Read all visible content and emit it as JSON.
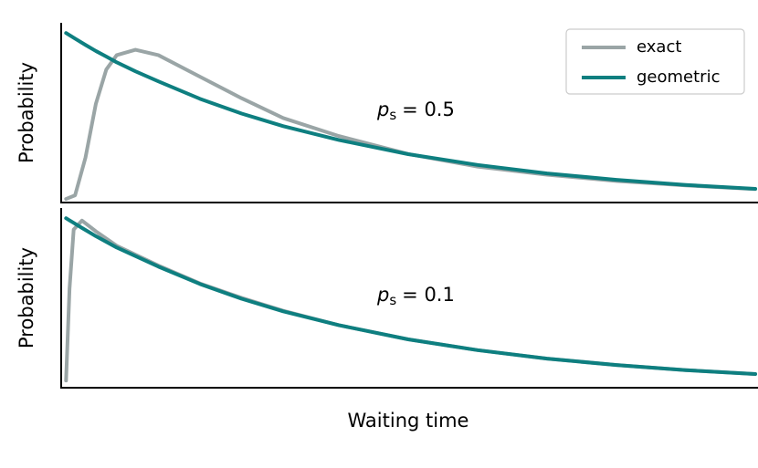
{
  "chart_data": [
    {
      "type": "line",
      "ylabel": "Probability",
      "annotation": {
        "symbol": "p",
        "subscript": "s",
        "text": "= 0.5"
      },
      "xlim": [
        0,
        100
      ],
      "ylim": [
        0,
        1
      ],
      "legend": "upper right",
      "x": [
        0.7,
        2,
        3.5,
        5,
        6.5,
        8,
        10.7,
        14,
        20,
        26,
        32,
        40,
        50,
        60,
        70,
        80,
        90,
        100
      ],
      "series": [
        {
          "name": "exact",
          "color": "#9aa5a6",
          "values": [
            0.02,
            0.04,
            0.25,
            0.55,
            0.74,
            0.82,
            0.85,
            0.82,
            0.7,
            0.58,
            0.47,
            0.37,
            0.27,
            0.2,
            0.155,
            0.12,
            0.095,
            0.075
          ]
        },
        {
          "name": "geometric",
          "color": "#0e7f80",
          "values": [
            0.943,
            0.912,
            0.877,
            0.843,
            0.812,
            0.78,
            0.73,
            0.674,
            0.577,
            0.495,
            0.425,
            0.348,
            0.269,
            0.209,
            0.162,
            0.126,
            0.098,
            0.076
          ]
        }
      ]
    },
    {
      "type": "line",
      "ylabel": "Probability",
      "xlabel": "Waiting time",
      "annotation": {
        "symbol": "p",
        "subscript": "s",
        "text": "= 0.1"
      },
      "xlim": [
        0,
        100
      ],
      "ylim": [
        0,
        1
      ],
      "x": [
        0.7,
        1.2,
        1.8,
        3,
        5,
        8,
        14,
        20,
        26,
        32,
        40,
        50,
        60,
        70,
        80,
        90,
        100
      ],
      "series": [
        {
          "name": "exact",
          "color": "#9aa5a6",
          "values": [
            0.04,
            0.55,
            0.88,
            0.93,
            0.87,
            0.79,
            0.68,
            0.58,
            0.5,
            0.428,
            0.348,
            0.269,
            0.209,
            0.162,
            0.126,
            0.098,
            0.076
          ]
        },
        {
          "name": "geometric",
          "color": "#0e7f80",
          "values": [
            0.943,
            0.931,
            0.917,
            0.889,
            0.843,
            0.78,
            0.674,
            0.577,
            0.495,
            0.425,
            0.348,
            0.269,
            0.209,
            0.162,
            0.126,
            0.098,
            0.076
          ]
        }
      ]
    }
  ]
}
